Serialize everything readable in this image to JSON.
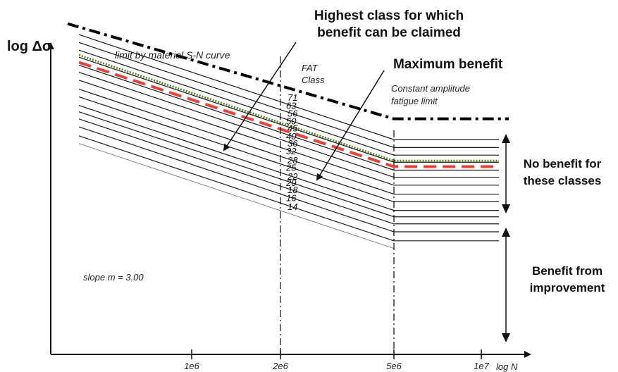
{
  "chart_data": {
    "type": "line",
    "y_axis_label": "log Δσ",
    "x_axis_label": "log N",
    "x_ticks": [
      {
        "value": 1000000,
        "label": "1e6"
      },
      {
        "value": 2000000,
        "label": "2e6"
      },
      {
        "value": 5000000,
        "label": "5e6"
      },
      {
        "value": 10000000,
        "label": "1e7"
      }
    ],
    "x_log_scale": true,
    "y_log_scale": true,
    "slope_m": 3.0,
    "constant_amplitude_N": 5000000,
    "fat_header": [
      "FAT",
      "Class"
    ],
    "fat_classes": [
      71,
      63,
      56,
      50,
      45,
      40,
      36,
      32,
      28,
      25,
      22,
      20,
      18,
      16,
      14
    ],
    "material_limit_class": 71,
    "highest_beneficial_class": 40,
    "max_benefit_class": 45,
    "annotations": {
      "material_limit": "limit by material S-N curve",
      "highest_class": [
        "Highest class for which",
        "benefit can be claimed"
      ],
      "max_benefit": "Maximum benefit",
      "constant_amplitude": [
        "Constant amplitude",
        "fatigue limit"
      ],
      "no_benefit": [
        "No benefit for",
        "these classes"
      ],
      "benefit": [
        "Benefit from",
        "improvement"
      ],
      "slope": "slope m = 3.00"
    },
    "colors": {
      "lines": "#1a1a1a",
      "material_limit": "#000000",
      "highest_class_line": "#e8413a",
      "max_benefit_line": "#5a8a2a"
    }
  }
}
